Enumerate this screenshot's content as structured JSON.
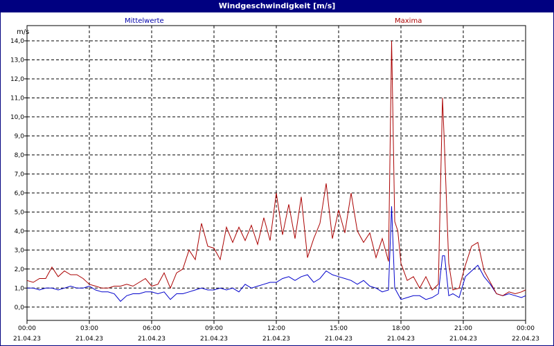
{
  "window": {
    "title": "Windgeschwindigkeit [m/s]"
  },
  "chart_data": {
    "type": "line",
    "title": "Windgeschwindigkeit [m/s]",
    "ylabel": "m/s",
    "ylim": [
      -0.7,
      14.8
    ],
    "xlim_hours": [
      0,
      24
    ],
    "grid": true,
    "yticks": [
      "0,0",
      "1,0",
      "2,0",
      "3,0",
      "4,0",
      "5,0",
      "6,0",
      "7,0",
      "8,0",
      "9,0",
      "10,0",
      "11,0",
      "12,0",
      "13,0",
      "14,0"
    ],
    "xticks": [
      {
        "time": "00:00",
        "date": "21.04.23"
      },
      {
        "time": "03:00",
        "date": "21.04.23"
      },
      {
        "time": "06:00",
        "date": "21.04.23"
      },
      {
        "time": "09:00",
        "date": "21.04.23"
      },
      {
        "time": "12:00",
        "date": "21.04.23"
      },
      {
        "time": "15:00",
        "date": "21.04.23"
      },
      {
        "time": "18:00",
        "date": "21.04.23"
      },
      {
        "time": "21:00",
        "date": "21.04.23"
      },
      {
        "time": "00:00",
        "date": "22.04.23"
      }
    ],
    "series": [
      {
        "name": "Mittelwerte",
        "color": "#0000cc",
        "x": [
          0.0,
          0.3,
          0.6,
          0.9,
          1.2,
          1.5,
          1.8,
          2.1,
          2.4,
          2.7,
          3.0,
          3.3,
          3.6,
          3.9,
          4.2,
          4.5,
          4.8,
          5.1,
          5.4,
          5.7,
          6.0,
          6.3,
          6.6,
          6.9,
          7.2,
          7.5,
          7.8,
          8.1,
          8.4,
          8.7,
          9.0,
          9.3,
          9.6,
          9.9,
          10.2,
          10.5,
          10.8,
          11.1,
          11.4,
          11.7,
          12.0,
          12.3,
          12.6,
          12.9,
          13.2,
          13.5,
          13.8,
          14.1,
          14.4,
          14.7,
          15.0,
          15.3,
          15.6,
          15.9,
          16.2,
          16.5,
          16.8,
          17.1,
          17.4,
          17.55,
          17.7,
          17.85,
          18.0,
          18.3,
          18.6,
          18.9,
          19.2,
          19.5,
          19.8,
          20.0,
          20.1,
          20.3,
          20.5,
          20.8,
          21.1,
          21.4,
          21.7,
          22.0,
          22.3,
          22.6,
          22.9,
          23.2,
          23.5,
          23.8,
          24.0
        ],
        "values": [
          1.0,
          1.0,
          0.9,
          1.0,
          1.0,
          0.9,
          1.0,
          1.1,
          1.0,
          1.0,
          1.1,
          0.9,
          0.8,
          0.8,
          0.7,
          0.3,
          0.6,
          0.7,
          0.7,
          0.8,
          0.8,
          0.7,
          0.8,
          0.4,
          0.7,
          0.7,
          0.8,
          0.9,
          1.0,
          0.9,
          0.9,
          1.0,
          0.9,
          1.0,
          0.8,
          1.2,
          1.0,
          1.1,
          1.2,
          1.3,
          1.3,
          1.5,
          1.6,
          1.4,
          1.6,
          1.7,
          1.3,
          1.5,
          1.9,
          1.7,
          1.6,
          1.5,
          1.4,
          1.2,
          1.4,
          1.1,
          1.0,
          0.8,
          0.9,
          5.3,
          1.0,
          0.7,
          0.4,
          0.5,
          0.6,
          0.6,
          0.4,
          0.5,
          0.7,
          2.7,
          2.7,
          0.6,
          0.7,
          0.5,
          1.6,
          1.9,
          2.2,
          1.6,
          1.2,
          0.7,
          0.6,
          0.7,
          0.6,
          0.5,
          0.6
        ]
      },
      {
        "name": "Maxima",
        "color": "#aa0000",
        "x": [
          0.0,
          0.3,
          0.6,
          0.9,
          1.2,
          1.5,
          1.8,
          2.1,
          2.4,
          2.7,
          3.0,
          3.3,
          3.6,
          3.9,
          4.2,
          4.5,
          4.8,
          5.1,
          5.4,
          5.7,
          6.0,
          6.3,
          6.6,
          6.9,
          7.2,
          7.5,
          7.8,
          8.1,
          8.4,
          8.7,
          9.0,
          9.3,
          9.6,
          9.9,
          10.2,
          10.5,
          10.8,
          11.1,
          11.4,
          11.7,
          12.0,
          12.3,
          12.6,
          12.9,
          13.2,
          13.5,
          13.8,
          14.1,
          14.4,
          14.7,
          15.0,
          15.3,
          15.6,
          15.9,
          16.2,
          16.5,
          16.8,
          17.1,
          17.4,
          17.55,
          17.7,
          17.85,
          18.0,
          18.3,
          18.6,
          18.9,
          19.2,
          19.5,
          19.8,
          20.0,
          20.1,
          20.3,
          20.5,
          20.8,
          21.1,
          21.4,
          21.7,
          22.0,
          22.3,
          22.6,
          22.9,
          23.2,
          23.5,
          23.8,
          24.0
        ],
        "values": [
          1.4,
          1.3,
          1.5,
          1.5,
          2.1,
          1.6,
          1.9,
          1.7,
          1.7,
          1.5,
          1.2,
          1.1,
          1.0,
          1.0,
          1.1,
          1.1,
          1.2,
          1.1,
          1.3,
          1.5,
          1.1,
          1.2,
          1.8,
          1.0,
          1.8,
          2.0,
          3.0,
          2.5,
          4.4,
          3.2,
          3.1,
          2.5,
          4.2,
          3.4,
          4.2,
          3.5,
          4.3,
          3.3,
          4.7,
          3.5,
          6.0,
          3.8,
          5.4,
          3.6,
          5.8,
          2.6,
          3.6,
          4.4,
          6.5,
          3.6,
          5.1,
          3.9,
          6.0,
          4.0,
          3.4,
          3.9,
          2.6,
          3.6,
          2.4,
          14.0,
          4.5,
          4.0,
          2.3,
          1.4,
          1.6,
          1.0,
          1.6,
          0.9,
          1.2,
          11.0,
          8.3,
          2.3,
          0.9,
          1.0,
          2.2,
          3.2,
          3.4,
          1.9,
          1.3,
          0.7,
          0.6,
          0.8,
          0.7,
          0.8,
          0.9
        ]
      }
    ]
  }
}
